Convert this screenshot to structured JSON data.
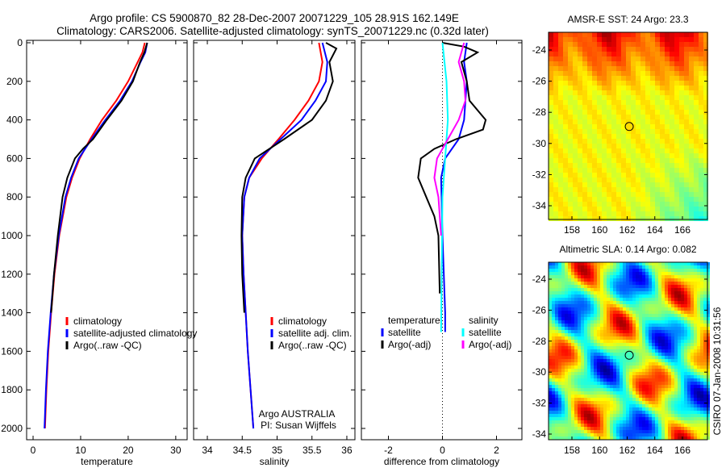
{
  "title_line1": "Argo profile: CS 5900870_82 28-Dec-2007 20071229_105 28.91S 162.149E",
  "title_line2": "Climatology: CARS2006. Satellite-adjusted climatology: synTS_20071229.nc (0.32d later)",
  "side_label": "CSIRO 07-Jan-2008 10:31:56",
  "chart_data": [
    {
      "type": "line",
      "xlabel": "temperature",
      "ylabel": "",
      "xlim": [
        -2,
        32
      ],
      "ylim": [
        2050,
        0
      ],
      "xticks": [
        "0",
        "10",
        "20",
        "30"
      ],
      "xtick_values": [
        0,
        10,
        20,
        30
      ],
      "yticks": [
        "0",
        "200",
        "400",
        "600",
        "800",
        "1000",
        "1200",
        "1400",
        "1600",
        "1800",
        "2000"
      ],
      "legend": [
        "climatology",
        "satellite-adjusted climatology",
        "Argo(..raw -QC)"
      ],
      "series": [
        {
          "name": "climatology",
          "color": "#ff0000",
          "points": [
            [
              23.5,
              0
            ],
            [
              23,
              50
            ],
            [
              22,
              100
            ],
            [
              20,
              200
            ],
            [
              17.5,
              300
            ],
            [
              14.5,
              400
            ],
            [
              12,
              500
            ],
            [
              9.8,
              600
            ],
            [
              8.2,
              700
            ],
            [
              7,
              800
            ],
            [
              5.5,
              1000
            ],
            [
              4.5,
              1200
            ],
            [
              3.8,
              1400
            ],
            [
              3.2,
              1600
            ],
            [
              2.8,
              1800
            ],
            [
              2.5,
              2000
            ]
          ]
        },
        {
          "name": "satellite-adjusted climatology",
          "color": "#0000ff",
          "points": [
            [
              24,
              0
            ],
            [
              23.6,
              50
            ],
            [
              22.6,
              100
            ],
            [
              20.8,
              200
            ],
            [
              18.3,
              300
            ],
            [
              15.2,
              400
            ],
            [
              12.3,
              500
            ],
            [
              9.6,
              600
            ],
            [
              8,
              700
            ],
            [
              6.8,
              800
            ],
            [
              5.4,
              1000
            ],
            [
              4.4,
              1200
            ],
            [
              3.7,
              1400
            ],
            [
              3.1,
              1600
            ],
            [
              2.7,
              1800
            ],
            [
              2.4,
              2000
            ]
          ]
        },
        {
          "name": "Argo(..raw -QC)",
          "color": "#000000",
          "points": [
            [
              24,
              0
            ],
            [
              23.4,
              50
            ],
            [
              22.5,
              100
            ],
            [
              21,
              200
            ],
            [
              18.6,
              300
            ],
            [
              15.5,
              400
            ],
            [
              12.6,
              500
            ],
            [
              10.5,
              550
            ],
            [
              8.8,
              600
            ],
            [
              7.2,
              700
            ],
            [
              6.2,
              800
            ],
            [
              5.2,
              1000
            ],
            [
              4.4,
              1200
            ],
            [
              3.8,
              1400
            ]
          ]
        }
      ]
    },
    {
      "type": "line",
      "xlabel": "salinity",
      "xlim": [
        33.8,
        36.1
      ],
      "ylim": [
        2050,
        0
      ],
      "xticks": [
        "34",
        "34.5",
        "35",
        "35.5",
        "36"
      ],
      "xtick_values": [
        34,
        34.5,
        35,
        35.5,
        36
      ],
      "legend": [
        "climatology",
        "satellite adj. clim.",
        "Argo(..raw -QC)"
      ],
      "annotation": [
        "Argo AUSTRALIA",
        "PI: Susan Wijffels"
      ],
      "series": [
        {
          "name": "climatology",
          "color": "#ff0000",
          "points": [
            [
              35.6,
              0
            ],
            [
              35.65,
              100
            ],
            [
              35.6,
              200
            ],
            [
              35.45,
              300
            ],
            [
              35.25,
              400
            ],
            [
              35.02,
              500
            ],
            [
              34.78,
              600
            ],
            [
              34.6,
              700
            ],
            [
              34.53,
              800
            ],
            [
              34.5,
              1000
            ],
            [
              34.52,
              1200
            ],
            [
              34.55,
              1400
            ],
            [
              34.58,
              1600
            ],
            [
              34.62,
              1800
            ],
            [
              34.66,
              2000
            ]
          ]
        },
        {
          "name": "satellite adj. clim.",
          "color": "#0000ff",
          "points": [
            [
              35.65,
              0
            ],
            [
              35.72,
              100
            ],
            [
              35.7,
              200
            ],
            [
              35.55,
              300
            ],
            [
              35.35,
              400
            ],
            [
              35.05,
              500
            ],
            [
              34.75,
              600
            ],
            [
              34.6,
              700
            ],
            [
              34.53,
              800
            ],
            [
              34.5,
              1000
            ],
            [
              34.52,
              1200
            ],
            [
              34.55,
              1400
            ],
            [
              34.58,
              1600
            ],
            [
              34.62,
              1800
            ],
            [
              34.66,
              2000
            ]
          ]
        },
        {
          "name": "Argo(..raw -QC)",
          "color": "#000000",
          "points": [
            [
              35.7,
              0
            ],
            [
              35.85,
              30
            ],
            [
              35.75,
              100
            ],
            [
              35.8,
              200
            ],
            [
              35.7,
              300
            ],
            [
              35.5,
              400
            ],
            [
              35.1,
              500
            ],
            [
              34.68,
              600
            ],
            [
              34.55,
              700
            ],
            [
              34.5,
              800
            ],
            [
              34.49,
              1000
            ],
            [
              34.5,
              1200
            ],
            [
              34.53,
              1400
            ]
          ]
        }
      ]
    },
    {
      "type": "line",
      "xlabel": "difference from climatology",
      "xlim": [
        -3,
        3
      ],
      "ylim": [
        2050,
        0
      ],
      "xticks": [
        "-2",
        "0",
        "2"
      ],
      "xtick_values": [
        -2,
        0,
        2
      ],
      "legend_temperature": {
        "title": "temperature",
        "items": [
          "satellite",
          "Argo(-adj)"
        ]
      },
      "legend_salinity": {
        "title": "salinity",
        "items": [
          "satellite",
          "Argo(-adj)"
        ]
      },
      "series": [
        {
          "name": "temperature satellite",
          "color": "#0000ff",
          "points": [
            [
              0.9,
              0
            ],
            [
              0.8,
              100
            ],
            [
              0.9,
              200
            ],
            [
              0.85,
              300
            ],
            [
              0.8,
              400
            ],
            [
              0.6,
              500
            ],
            [
              0.1,
              600
            ],
            [
              -0.05,
              700
            ],
            [
              0,
              1000
            ],
            [
              0.1,
              1400
            ],
            [
              0.1,
              1500
            ]
          ]
        },
        {
          "name": "temperature Argo(-adj)",
          "color": "#000000",
          "points": [
            [
              0,
              0
            ],
            [
              0.8,
              20
            ],
            [
              1.3,
              50
            ],
            [
              0.7,
              100
            ],
            [
              0.9,
              200
            ],
            [
              1.0,
              300
            ],
            [
              1.6,
              400
            ],
            [
              1.5,
              450
            ],
            [
              0.5,
              500
            ],
            [
              -0.3,
              550
            ],
            [
              -0.8,
              600
            ],
            [
              -0.9,
              700
            ],
            [
              -0.6,
              800
            ],
            [
              -0.3,
              900
            ],
            [
              -0.15,
              1000
            ],
            [
              -0.1,
              1300
            ]
          ]
        },
        {
          "name": "salinity satellite",
          "color": "#00ffff",
          "points": [
            [
              0,
              0
            ],
            [
              0.15,
              200
            ],
            [
              0.2,
              400
            ],
            [
              0.1,
              600
            ],
            [
              0,
              800
            ],
            [
              -0.05,
              1500
            ]
          ]
        },
        {
          "name": "salinity Argo(-adj)",
          "color": "#ff00ff",
          "points": [
            [
              0.8,
              0
            ],
            [
              0.6,
              100
            ],
            [
              0.8,
              200
            ],
            [
              0.85,
              300
            ],
            [
              0.6,
              400
            ],
            [
              0.2,
              500
            ],
            [
              -0.2,
              600
            ],
            [
              -0.3,
              700
            ],
            [
              -0.15,
              800
            ],
            [
              -0.05,
              1000
            ]
          ]
        }
      ]
    },
    {
      "type": "heatmap",
      "title": "AMSR-E SST: 24 Argo: 23.3",
      "xticks": [
        "158",
        "160",
        "162",
        "164",
        "166"
      ],
      "yticks": [
        "-24",
        "-26",
        "-28",
        "-30",
        "-32",
        "-34"
      ],
      "marker": [
        162.149,
        -28.91
      ]
    },
    {
      "type": "heatmap",
      "title": "Altimetric SLA: 0.14 Argo: 0.082",
      "xticks": [
        "158",
        "160",
        "162",
        "164",
        "166"
      ],
      "yticks": [
        "-24",
        "-26",
        "-28",
        "-30",
        "-32",
        "-34"
      ],
      "marker": [
        162.149,
        -28.91
      ]
    }
  ]
}
